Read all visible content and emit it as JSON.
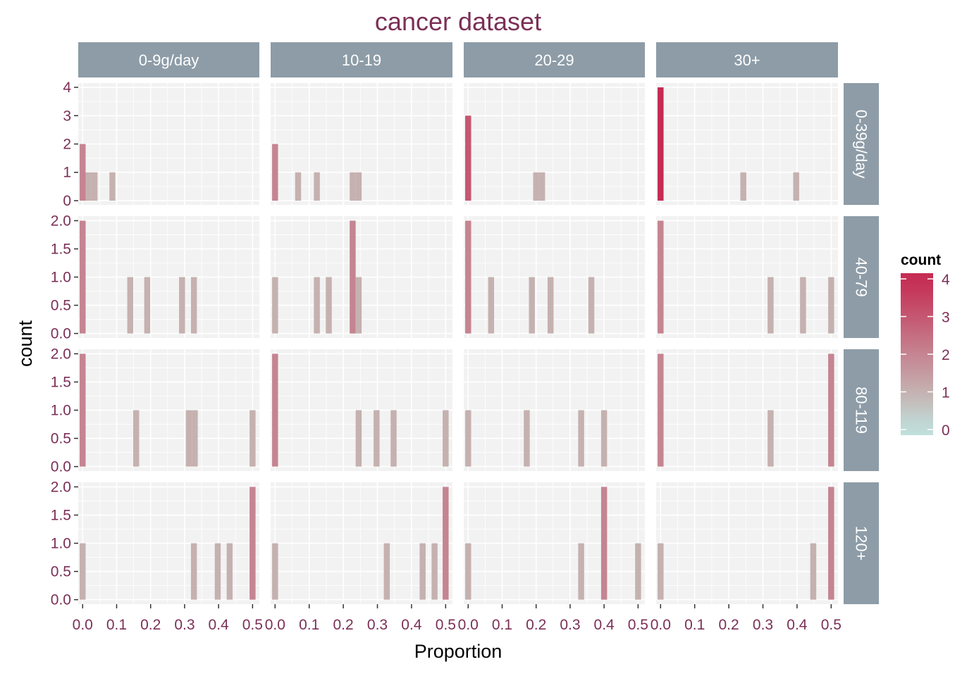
{
  "chart_data": {
    "type": "histogram",
    "title": "cancer dataset",
    "xlabel": "Proportion",
    "ylabel": "count",
    "col_facets": [
      "0-9g/day",
      "10-19",
      "20-29",
      "30+"
    ],
    "row_facets": [
      "0-39g/day",
      "40-79",
      "80-119",
      "120+"
    ],
    "x_ticks": [
      0.0,
      0.1,
      0.2,
      0.3,
      0.4,
      0.5
    ],
    "x_tick_labels": [
      "0.0",
      "0.1",
      "0.2",
      "0.3",
      "0.4",
      "0.5"
    ],
    "xlim": [
      -0.013,
      0.52
    ],
    "row_scales": [
      {
        "ylim": [
          -0.15,
          4.15
        ],
        "ticks": [
          0,
          1,
          2,
          3,
          4
        ],
        "tick_labels": [
          "0",
          "1",
          "2",
          "3",
          "4"
        ]
      },
      {
        "ylim": [
          -0.08,
          2.08
        ],
        "ticks": [
          0,
          0.5,
          1,
          1.5,
          2
        ],
        "tick_labels": [
          "0.0",
          "0.5",
          "1.0",
          "1.5",
          "2.0"
        ]
      },
      {
        "ylim": [
          -0.08,
          2.08
        ],
        "ticks": [
          0,
          0.5,
          1,
          1.5,
          2
        ],
        "tick_labels": [
          "0.0",
          "0.5",
          "1.0",
          "1.5",
          "2.0"
        ]
      },
      {
        "ylim": [
          -0.08,
          2.08
        ],
        "ticks": [
          0,
          0.5,
          1,
          1.5,
          2
        ],
        "tick_labels": [
          "0.0",
          "0.5",
          "1.0",
          "1.5",
          "2.0"
        ]
      }
    ],
    "bin_width": 0.0175,
    "panels": [
      [
        {
          "x": [
            0,
            0.0175,
            0.035,
            0.0875
          ],
          "count": [
            2,
            1,
            1,
            1
          ]
        },
        {
          "x": [
            0,
            0.0675,
            0.1225,
            0.2275,
            0.245
          ],
          "count": [
            2,
            1,
            1,
            1,
            1
          ]
        },
        {
          "x": [
            0,
            0.2,
            0.2175
          ],
          "count": [
            3,
            1,
            1
          ]
        },
        {
          "x": [
            0,
            0.2425,
            0.3975
          ],
          "count": [
            4,
            1,
            1
          ]
        }
      ],
      [
        {
          "x": [
            0,
            0.14,
            0.19,
            0.2925,
            0.3275
          ],
          "count": [
            2,
            1,
            1,
            1,
            1
          ]
        },
        {
          "x": [
            0,
            0.1225,
            0.1575,
            0.2275,
            0.245
          ],
          "count": [
            1,
            1,
            1,
            2,
            1
          ]
        },
        {
          "x": [
            0,
            0.0675,
            0.1875,
            0.2425,
            0.3625
          ],
          "count": [
            2,
            1,
            1,
            1,
            1
          ]
        },
        {
          "x": [
            0,
            0.3225,
            0.4175,
            0.5
          ],
          "count": [
            2,
            1,
            1,
            1
          ]
        }
      ],
      [
        {
          "x": [
            0,
            0.1575,
            0.3125,
            0.33,
            0.5
          ],
          "count": [
            2,
            1,
            1,
            1,
            1
          ]
        },
        {
          "x": [
            0,
            0.245,
            0.2975,
            0.3475,
            0.5
          ],
          "count": [
            2,
            1,
            1,
            1,
            1
          ]
        },
        {
          "x": [
            0,
            0.1725,
            0.3325,
            0.4
          ],
          "count": [
            1,
            1,
            1,
            1
          ]
        },
        {
          "x": [
            0,
            0.3225,
            0.5
          ],
          "count": [
            2,
            1,
            2
          ]
        }
      ],
      [
        {
          "x": [
            0,
            0.3275,
            0.3975,
            0.4325,
            0.5
          ],
          "count": [
            1,
            1,
            1,
            1,
            2
          ]
        },
        {
          "x": [
            0,
            0.3275,
            0.4325,
            0.4675,
            0.5
          ],
          "count": [
            1,
            1,
            1,
            1,
            2
          ]
        },
        {
          "x": [
            0,
            0.3325,
            0.4,
            0.5
          ],
          "count": [
            1,
            1,
            2,
            1
          ]
        },
        {
          "x": [
            0,
            0.4475,
            0.5
          ],
          "count": [
            1,
            1,
            2
          ]
        }
      ]
    ],
    "legend": {
      "title": "count",
      "ticks": [
        0,
        1,
        2,
        3,
        4
      ],
      "tick_labels": [
        "0",
        "1",
        "2",
        "3",
        "4"
      ],
      "range": [
        -0.15,
        4.15
      ],
      "position": "right"
    },
    "colors": {
      "low": "#c0e0dc",
      "mid": "#c5b1b0",
      "high": "#c52a52",
      "panel_bg": "#f2f2f2",
      "grid": "#ffffff",
      "strip_bg": "#8d9ca7",
      "text_accent": "#7b3056"
    }
  }
}
